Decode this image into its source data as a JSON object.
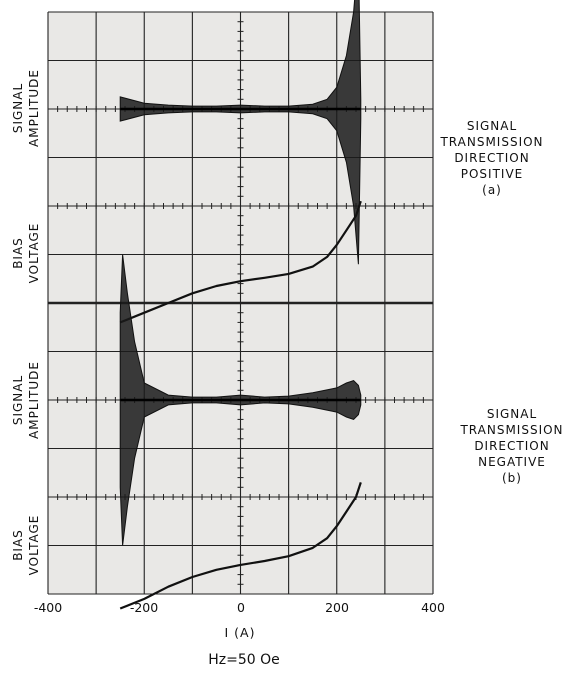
{
  "chart_data": {
    "type": "line",
    "xlabel": "I (A)",
    "xlim": [
      -400,
      400
    ],
    "x_ticks": [
      "-400",
      "-200",
      "0",
      "200",
      "400"
    ],
    "footer": "Hz=50 Oe",
    "panels": [
      {
        "id": "a",
        "caption_lines": [
          "SIGNAL",
          "TRANSMISSION",
          "DIRECTION",
          "POSITIVE",
          "(a)"
        ],
        "amplitude_label": [
          "SIGNAL",
          "AMPLITUDE"
        ],
        "bias_label": [
          "BIAS",
          "VOLTAGE"
        ],
        "signal_amplitude": {
          "x": [
            -250,
            -200,
            -150,
            -100,
            -50,
            0,
            50,
            100,
            150,
            180,
            200,
            220,
            235,
            245,
            250
          ],
          "envelope": [
            0.25,
            0.12,
            0.08,
            0.06,
            0.06,
            0.08,
            0.06,
            0.06,
            0.1,
            0.2,
            0.45,
            1.1,
            2.0,
            3.2,
            0.2
          ]
        },
        "bias_voltage": {
          "x": [
            -250,
            -200,
            -150,
            -100,
            -50,
            0,
            50,
            100,
            150,
            180,
            200,
            220,
            240,
            250
          ],
          "y": [
            -1.4,
            -1.2,
            -1.0,
            -0.8,
            -0.65,
            -0.55,
            -0.48,
            -0.4,
            -0.25,
            -0.05,
            0.2,
            0.5,
            0.8,
            1.1
          ]
        }
      },
      {
        "id": "b",
        "caption_lines": [
          "SIGNAL",
          "TRANSMISSION",
          "DIRECTION",
          "NEGATIVE",
          "(b)"
        ],
        "amplitude_label": [
          "SIGNAL",
          "AMPLITUDE"
        ],
        "bias_label": [
          "BIAS",
          "VOLTAGE"
        ],
        "signal_amplitude": {
          "x": [
            -250,
            -245,
            -235,
            -220,
            -200,
            -150,
            -100,
            -50,
            0,
            50,
            100,
            150,
            200,
            220,
            235,
            245,
            250
          ],
          "envelope": [
            1.8,
            3.0,
            2.2,
            1.2,
            0.35,
            0.1,
            0.06,
            0.06,
            0.1,
            0.06,
            0.08,
            0.15,
            0.25,
            0.35,
            0.4,
            0.3,
            0.1
          ]
        },
        "bias_voltage": {
          "x": [
            -250,
            -200,
            -150,
            -100,
            -50,
            0,
            50,
            100,
            150,
            180,
            200,
            220,
            240,
            250
          ],
          "y": [
            -1.3,
            -1.1,
            -0.85,
            -0.65,
            -0.5,
            -0.4,
            -0.32,
            -0.22,
            -0.05,
            0.15,
            0.4,
            0.7,
            1.0,
            1.3
          ]
        }
      }
    ]
  }
}
